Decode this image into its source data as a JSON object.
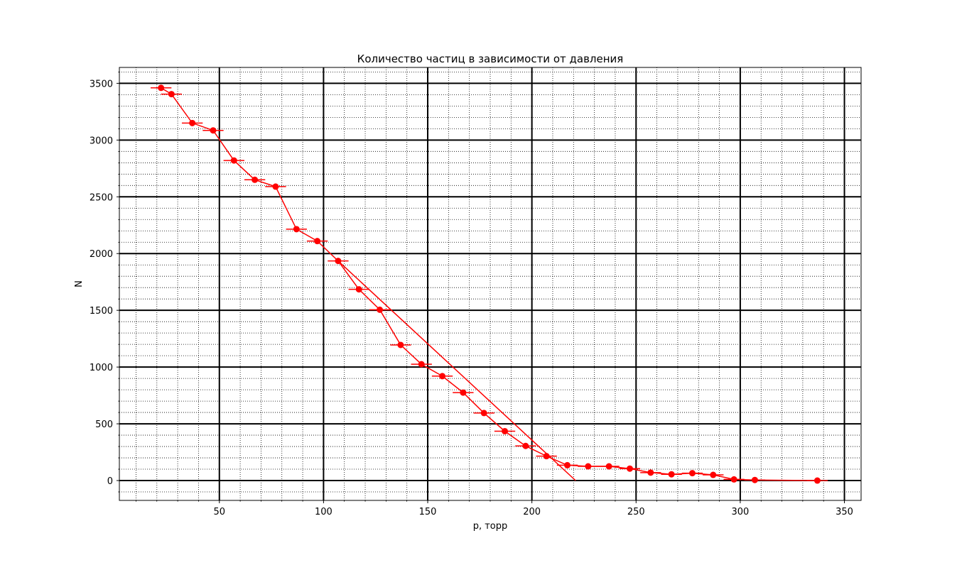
{
  "chart_data": {
    "type": "scatter",
    "title": "Количество частиц в зависимости от давления",
    "xlabel": "p, торр",
    "ylabel": "N",
    "xlim": [
      2,
      358
    ],
    "ylim": [
      -175,
      3640
    ],
    "x_ticks": [
      50,
      100,
      150,
      200,
      250,
      300,
      350
    ],
    "y_ticks": [
      0,
      500,
      1000,
      1500,
      2000,
      2500,
      3000,
      3500
    ],
    "x_minor_step": 10,
    "y_minor_step": 100,
    "grid": "major and minor",
    "legend": "none",
    "color": "#ff0000",
    "series": [
      {
        "style": "markers-line-with-xerr",
        "xerr": 5,
        "x": [
          22,
          27,
          37,
          47,
          57,
          67,
          77,
          87,
          97,
          107,
          117,
          127,
          137,
          147,
          157,
          167,
          177,
          187,
          197,
          207,
          217,
          227,
          237,
          247,
          257,
          267,
          277,
          287,
          297,
          307,
          337
        ],
        "y": [
          3460,
          3405,
          3150,
          3085,
          2820,
          2650,
          2590,
          2215,
          2110,
          1935,
          1685,
          1505,
          1195,
          1025,
          920,
          775,
          595,
          435,
          305,
          215,
          135,
          125,
          125,
          105,
          70,
          55,
          65,
          50,
          10,
          5,
          0
        ]
      },
      {
        "style": "line",
        "x": [
          107,
          221
        ],
        "y": [
          1935,
          0
        ]
      }
    ]
  }
}
